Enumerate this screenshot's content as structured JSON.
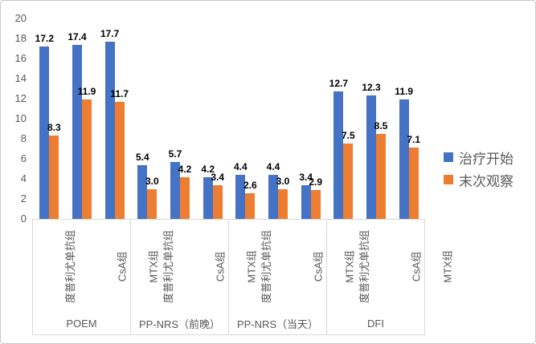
{
  "colors": {
    "series_start": "#4472C4",
    "series_end": "#ED7D31",
    "axis_text": "#595959",
    "box_border": "#D9D9D9",
    "frame_border": "#C9C9C9",
    "data_label": "#000000"
  },
  "legend": {
    "items": [
      {
        "label": "治疗开始",
        "color": "#4472C4"
      },
      {
        "label": "末次观察",
        "color": "#ED7D31"
      }
    ]
  },
  "chart_data": {
    "type": "bar",
    "title": "",
    "xlabel": "",
    "ylabel": "",
    "ylim": [
      0,
      20
    ],
    "yticks": [
      0,
      2,
      4,
      6,
      8,
      10,
      12,
      14,
      16,
      18,
      20
    ],
    "grid": false,
    "legend_position": "right",
    "groups": [
      {
        "label": "POEM",
        "categories": [
          "度普利尤单抗组",
          "CsA组",
          "MTX组"
        ]
      },
      {
        "label": "PP-NRS（前晚）",
        "categories": [
          "度普利尤单抗组",
          "CsA组",
          "MTX组"
        ]
      },
      {
        "label": "PP-NRS（当天）",
        "categories": [
          "度普利尤单抗组",
          "CsA组",
          "MTX组"
        ]
      },
      {
        "label": "DFI",
        "categories": [
          "度普利尤单抗组",
          "CsA组",
          "MTX组"
        ]
      }
    ],
    "series": [
      {
        "name": "治疗开始",
        "color": "#4472C4",
        "values": [
          [
            17.2,
            17.4,
            17.7
          ],
          [
            5.4,
            5.7,
            4.2
          ],
          [
            4.4,
            4.4,
            3.4
          ],
          [
            12.7,
            12.3,
            11.9
          ]
        ]
      },
      {
        "name": "末次观察",
        "color": "#ED7D31",
        "values": [
          [
            8.3,
            11.9,
            11.7
          ],
          [
            3.0,
            4.2,
            3.4
          ],
          [
            2.6,
            3.0,
            2.9
          ],
          [
            7.5,
            8.5,
            7.1
          ]
        ]
      }
    ],
    "label_decimals": 1
  }
}
